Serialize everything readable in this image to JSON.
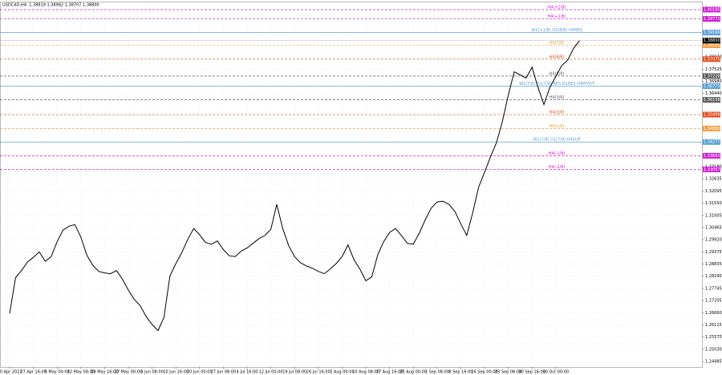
{
  "chart_data": {
    "type": "line",
    "title": "USDCAD,H4: 1.38819 1.38982 1.38707 1.38800",
    "color": "#000000",
    "grid": true,
    "ylim": [
      1.2424,
      1.4047
    ],
    "yticks": [
      {
        "value": 1.24485,
        "label": "1.24485"
      },
      {
        "value": 1.2503,
        "label": "1.25030"
      },
      {
        "value": 1.25575,
        "label": "1.25575"
      },
      {
        "value": 1.26115,
        "label": "1.26115"
      },
      {
        "value": 1.2666,
        "label": "1.26660"
      },
      {
        "value": 1.27205,
        "label": "1.27205"
      },
      {
        "value": 1.27745,
        "label": "1.27745"
      },
      {
        "value": 1.2829,
        "label": "1.28290"
      },
      {
        "value": 1.28835,
        "label": "1.28835"
      },
      {
        "value": 1.29375,
        "label": "1.29375"
      },
      {
        "value": 1.2992,
        "label": "1.29920"
      },
      {
        "value": 1.30465,
        "label": "1.30465"
      },
      {
        "value": 1.31005,
        "label": "1.31005"
      },
      {
        "value": 1.3155,
        "label": "1.31550"
      },
      {
        "value": 1.32095,
        "label": "1.32095"
      },
      {
        "value": 1.32635,
        "label": "1.32635"
      },
      {
        "value": 1.3318,
        "label": "1.33180"
      },
      {
        "value": 1.3644,
        "label": "1.36440"
      },
      {
        "value": 1.3698,
        "label": "1.36980"
      },
      {
        "value": 1.37525,
        "label": "1.37525"
      },
      {
        "value": 1.3807,
        "label": "1.38070"
      }
    ],
    "categories": [
      "20 Apr 2022",
      null,
      null,
      null,
      "27 Apr 16:00",
      null,
      null,
      null,
      "5 May 00:00",
      null,
      null,
      null,
      "12 May 08:00",
      null,
      null,
      null,
      "19 May 16:00",
      null,
      null,
      null,
      "27 May 00:00",
      null,
      null,
      null,
      "3 Jun 08:00",
      null,
      null,
      null,
      "10 Jun 16:00",
      null,
      null,
      null,
      "20 Jun 00:00",
      null,
      null,
      null,
      "27 Jun 08:00",
      null,
      null,
      null,
      "4 Jul 16:00",
      null,
      null,
      null,
      "12 Jul 00:00",
      null,
      null,
      null,
      "19 Jul 08:00",
      null,
      null,
      null,
      "26 Jul 16:00",
      null,
      null,
      null,
      "3 Aug 00:00",
      null,
      null,
      null,
      "10 Aug 08:00",
      null,
      null,
      null,
      "17 Aug 16:00",
      null,
      null,
      null,
      "25 Aug 00:00",
      null,
      null,
      null,
      "1 Sep 08:00",
      null,
      null,
      null,
      "8 Sep 16:00",
      null,
      null,
      null,
      "16 Sep 00:00",
      null,
      null,
      null,
      "23 Sep 08:00",
      null,
      null,
      null,
      "30 Sep 16:00",
      null,
      null,
      null,
      "10 Oct 00:00",
      null,
      null,
      null,
      null
    ],
    "values": [
      1.26627,
      1.28227,
      1.2854,
      1.28922,
      1.29131,
      1.29375,
      1.28957,
      1.29166,
      1.29827,
      1.30348,
      1.30522,
      1.30592,
      1.30035,
      1.29235,
      1.28783,
      1.28505,
      1.28436,
      1.28401,
      1.2854,
      1.28157,
      1.2767,
      1.27253,
      1.26975,
      1.26488,
      1.2614,
      1.25862,
      1.26453,
      1.28296,
      1.28853,
      1.2934,
      1.29931,
      1.30418,
      1.3014,
      1.29792,
      1.29722,
      1.29862,
      1.29479,
      1.29201,
      1.29166,
      1.29409,
      1.29549,
      1.29757,
      1.29966,
      1.30105,
      1.30383,
      1.31496,
      1.30418,
      1.29653,
      1.29166,
      1.28888,
      1.28749,
      1.28644,
      1.28505,
      1.28401,
      1.28609,
      1.28853,
      1.29166,
      1.29688,
      1.29027,
      1.28609,
      1.28088,
      1.28262,
      1.29235,
      1.29827,
      1.30244,
      1.30418,
      1.30105,
      1.29757,
      1.29722,
      1.30209,
      1.30801,
      1.31322,
      1.31601,
      1.31635,
      1.31496,
      1.31183,
      1.30627,
      1.30105,
      1.31114,
      1.32261,
      1.32922,
      1.33618,
      1.34244,
      1.35183,
      1.36365,
      1.37409,
      1.3727,
      1.37131,
      1.37617,
      1.36713,
      1.35948,
      1.36713,
      1.372,
      1.37687,
      1.3793,
      1.38452,
      1.388
    ],
    "current_price": {
      "value": 1.388,
      "label": "1.38800"
    },
    "levels": [
      {
        "name": "H4(+2/8)",
        "value": 1.40185,
        "label": "1.40185",
        "color": "#d020d0",
        "style": "dashed"
      },
      {
        "name": "H4(+1/8)",
        "value": 1.39771,
        "label": "1.39771",
        "color": "#d020d0",
        "style": "dashed"
      },
      {
        "name": "W1(+1/8) D1(8/8) H4RES",
        "value": 1.3916,
        "label": "1.39160",
        "color": "#5aa0d8",
        "style": "solid"
      },
      {
        "name": "H4(7/8)",
        "value": 1.38595,
        "label": "1.38595",
        "color": "#f0a040",
        "style": "dashed"
      },
      {
        "name": "H4(6/8)",
        "value": 1.37975,
        "label": "1.37975",
        "color": "#e05020",
        "style": "dashed"
      },
      {
        "name": "H4(5/8)",
        "value": 1.3722,
        "label": "1.37220",
        "color": "#606060",
        "style": "dashed"
      },
      {
        "name": "W1(7/8) D1(7/8) RES D1RES H4PIVOT",
        "value": 1.36771,
        "label": "1.36771",
        "color": "#5aa0d8",
        "style": "solid"
      },
      {
        "name": "H4(3/8)",
        "value": 1.36158,
        "label": "1.36158",
        "color": "#606060",
        "style": "dashed"
      },
      {
        "name": "H4(2/8)",
        "value": 1.35499,
        "label": "1.35499",
        "color": "#e05020",
        "style": "dashed"
      },
      {
        "name": "H4(1/8)",
        "value": 1.3488,
        "label": "1.34880",
        "color": "#f0a040",
        "style": "dashed"
      },
      {
        "name": "W1(7/8) D1(7/8) H4SUP",
        "value": 1.34277,
        "label": "1.34277",
        "color": "#5aa0d8",
        "style": "solid"
      },
      {
        "name": "H4(-1/8)",
        "value": 1.33663,
        "label": "1.33663",
        "color": "#d020d0",
        "style": "dashed"
      },
      {
        "name": "H4(-2/8)",
        "value": 1.33057,
        "label": "1.33057",
        "color": "#d020d0",
        "style": "dashed"
      }
    ]
  }
}
